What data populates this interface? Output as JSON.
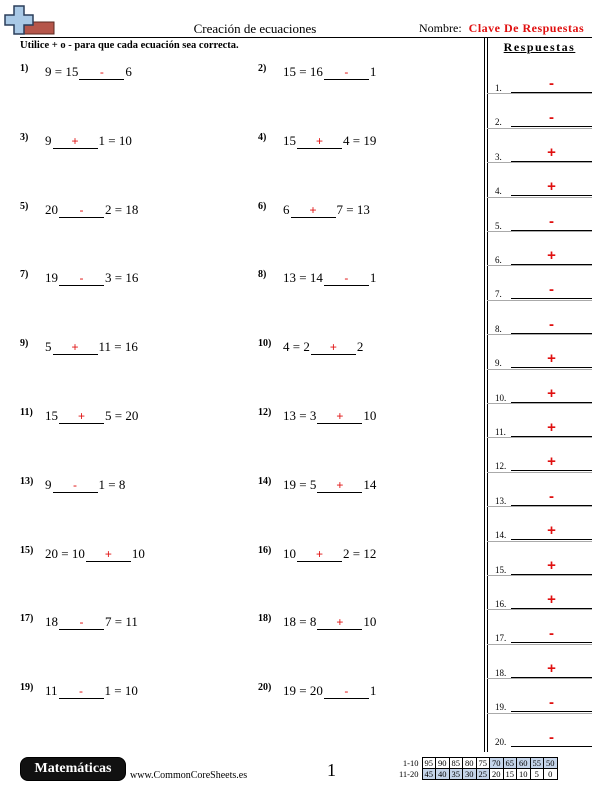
{
  "header": {
    "title": "Creación de ecuaciones",
    "name_label": "Nombre:",
    "name_value": "Clave De Respuestas"
  },
  "instructions": "Utilice + o - para que cada ecuación sea correcta.",
  "answers_title": "Respuestas",
  "problems": [
    {
      "num": "1)",
      "pre": "9 = 15",
      "op": "-",
      "post": "6"
    },
    {
      "num": "2)",
      "pre": "15 = 16",
      "op": "-",
      "post": "1"
    },
    {
      "num": "3)",
      "pre": "9",
      "op": "+",
      "post": "1 = 10"
    },
    {
      "num": "4)",
      "pre": "15",
      "op": "+",
      "post": "4 = 19"
    },
    {
      "num": "5)",
      "pre": "20",
      "op": "-",
      "post": "2 = 18"
    },
    {
      "num": "6)",
      "pre": "6",
      "op": "+",
      "post": "7 = 13"
    },
    {
      "num": "7)",
      "pre": "19",
      "op": "-",
      "post": "3 = 16"
    },
    {
      "num": "8)",
      "pre": "13 = 14",
      "op": "-",
      "post": "1"
    },
    {
      "num": "9)",
      "pre": "5",
      "op": "+",
      "post": "11 = 16"
    },
    {
      "num": "10)",
      "pre": "4 = 2",
      "op": "+",
      "post": "2"
    },
    {
      "num": "11)",
      "pre": "15",
      "op": "+",
      "post": "5 = 20"
    },
    {
      "num": "12)",
      "pre": "13 = 3",
      "op": "+",
      "post": "10"
    },
    {
      "num": "13)",
      "pre": "9",
      "op": "-",
      "post": "1 = 8"
    },
    {
      "num": "14)",
      "pre": "19 = 5",
      "op": "+",
      "post": "14"
    },
    {
      "num": "15)",
      "pre": "20 = 10",
      "op": "+",
      "post": "10"
    },
    {
      "num": "16)",
      "pre": "10",
      "op": "+",
      "post": "2 = 12"
    },
    {
      "num": "17)",
      "pre": "18",
      "op": "-",
      "post": "7 = 11"
    },
    {
      "num": "18)",
      "pre": "18 = 8",
      "op": "+",
      "post": "10"
    },
    {
      "num": "19)",
      "pre": "11",
      "op": "-",
      "post": "1 = 10"
    },
    {
      "num": "20)",
      "pre": "19 = 20",
      "op": "-",
      "post": "1"
    }
  ],
  "answers": [
    {
      "num": "1.",
      "val": "-"
    },
    {
      "num": "2.",
      "val": "-"
    },
    {
      "num": "3.",
      "val": "+"
    },
    {
      "num": "4.",
      "val": "+"
    },
    {
      "num": "5.",
      "val": "-"
    },
    {
      "num": "6.",
      "val": "+"
    },
    {
      "num": "7.",
      "val": "-"
    },
    {
      "num": "8.",
      "val": "-"
    },
    {
      "num": "9.",
      "val": "+"
    },
    {
      "num": "10.",
      "val": "+"
    },
    {
      "num": "11.",
      "val": "+"
    },
    {
      "num": "12.",
      "val": "+"
    },
    {
      "num": "13.",
      "val": "-"
    },
    {
      "num": "14.",
      "val": "+"
    },
    {
      "num": "15.",
      "val": "+"
    },
    {
      "num": "16.",
      "val": "+"
    },
    {
      "num": "17.",
      "val": "-"
    },
    {
      "num": "18.",
      "val": "+"
    },
    {
      "num": "19.",
      "val": "-"
    },
    {
      "num": "20.",
      "val": "-"
    }
  ],
  "footer": {
    "subject": "Matemáticas",
    "site": "www.CommonCoreSheets.es",
    "page": "1"
  },
  "score_table": {
    "rows": [
      {
        "label": "1-10",
        "cells": [
          "95",
          "90",
          "85",
          "80",
          "75",
          "70",
          "65",
          "60",
          "55",
          "50"
        ]
      },
      {
        "label": "11-20",
        "cells": [
          "45",
          "40",
          "35",
          "30",
          "25",
          "20",
          "15",
          "10",
          "5",
          "0"
        ]
      }
    ]
  },
  "colors": {
    "answer_red": "#e01010",
    "score_shade": "#c5d5ea"
  }
}
